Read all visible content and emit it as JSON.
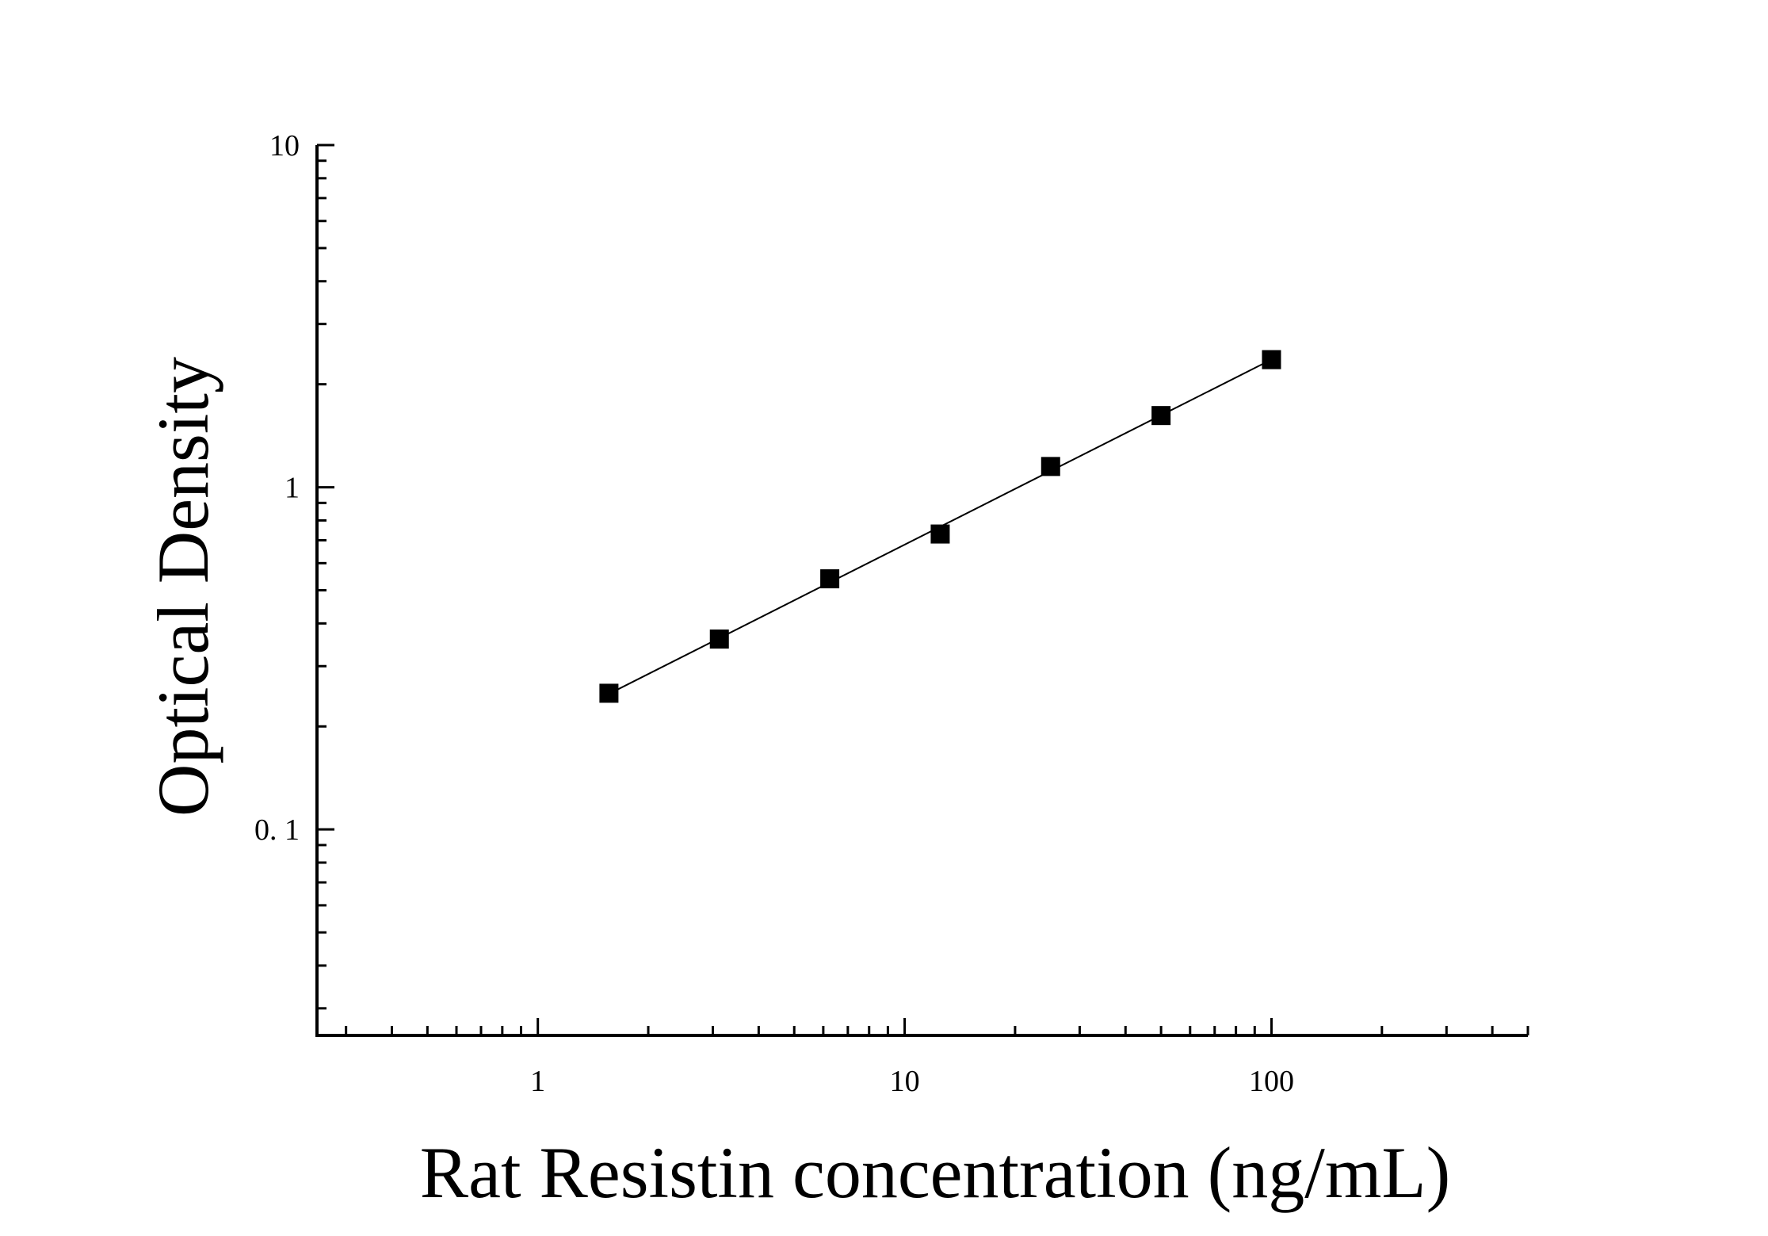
{
  "chart_data": {
    "type": "scatter",
    "title": "",
    "xlabel": "Rat Resistin concentration (ng/mL)",
    "ylabel": "Optical Density",
    "x_scale": "log",
    "y_scale": "log",
    "xlim": [
      0.25,
      500
    ],
    "ylim": [
      0.025,
      10
    ],
    "x_ticks": [
      {
        "value": 1,
        "label": "1"
      },
      {
        "value": 10,
        "label": "10"
      },
      {
        "value": 100,
        "label": "100"
      }
    ],
    "y_ticks": [
      {
        "value": 0.1,
        "label": "0. 1"
      },
      {
        "value": 1,
        "label": "1"
      },
      {
        "value": 10,
        "label": "10"
      }
    ],
    "grid": false,
    "legend": "none",
    "series": [
      {
        "x": [
          1.5625,
          3.125,
          6.25,
          12.5,
          25,
          50,
          100
        ],
        "y": [
          0.25,
          0.36,
          0.54,
          0.73,
          1.15,
          1.62,
          2.36
        ],
        "marker": "square",
        "color": "#000000",
        "fit_line": true
      }
    ]
  }
}
